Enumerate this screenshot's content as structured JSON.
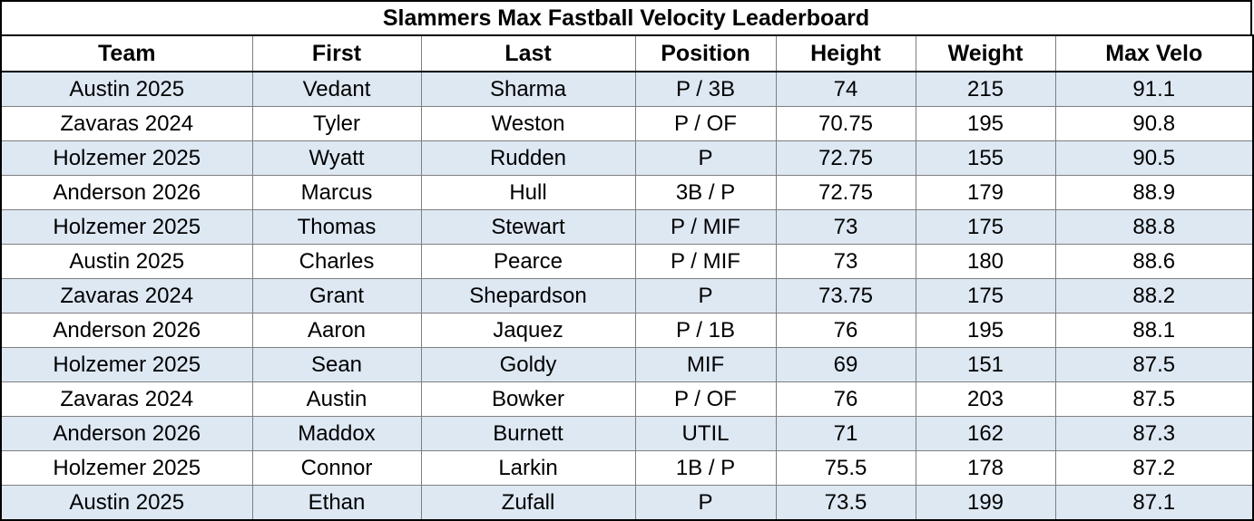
{
  "title": "Slammers Max Fastball Velocity Leaderboard",
  "columns": [
    "Team",
    "First",
    "Last",
    "Position",
    "Height",
    "Weight",
    "Max Velo"
  ],
  "rows": [
    [
      "Austin 2025",
      "Vedant",
      "Sharma",
      "P / 3B",
      "74",
      "215",
      "91.1"
    ],
    [
      "Zavaras 2024",
      "Tyler",
      "Weston",
      "P / OF",
      "70.75",
      "195",
      "90.8"
    ],
    [
      "Holzemer 2025",
      "Wyatt",
      "Rudden",
      "P",
      "72.75",
      "155",
      "90.5"
    ],
    [
      "Anderson 2026",
      "Marcus",
      "Hull",
      "3B / P",
      "72.75",
      "179",
      "88.9"
    ],
    [
      "Holzemer 2025",
      "Thomas",
      "Stewart",
      "P / MIF",
      "73",
      "175",
      "88.8"
    ],
    [
      "Austin 2025",
      "Charles",
      "Pearce",
      "P / MIF",
      "73",
      "180",
      "88.6"
    ],
    [
      "Zavaras 2024",
      "Grant",
      "Shepardson",
      "P",
      "73.75",
      "175",
      "88.2"
    ],
    [
      "Anderson 2026",
      "Aaron",
      "Jaquez",
      "P / 1B",
      "76",
      "195",
      "88.1"
    ],
    [
      "Holzemer 2025",
      "Sean",
      "Goldy",
      "MIF",
      "69",
      "151",
      "87.5"
    ],
    [
      "Zavaras 2024",
      "Austin",
      "Bowker",
      "P / OF",
      "76",
      "203",
      "87.5"
    ],
    [
      "Anderson 2026",
      "Maddox",
      "Burnett",
      "UTIL",
      "71",
      "162",
      "87.3"
    ],
    [
      "Holzemer 2025",
      "Connor",
      "Larkin",
      "1B / P",
      "75.5",
      "178",
      "87.2"
    ],
    [
      "Austin 2025",
      "Ethan",
      "Zufall",
      "P",
      "73.5",
      "199",
      "87.1"
    ]
  ],
  "colors": {
    "shaded_row": "#dde8f3",
    "plain_row": "#ffffff",
    "border": "#000000"
  }
}
